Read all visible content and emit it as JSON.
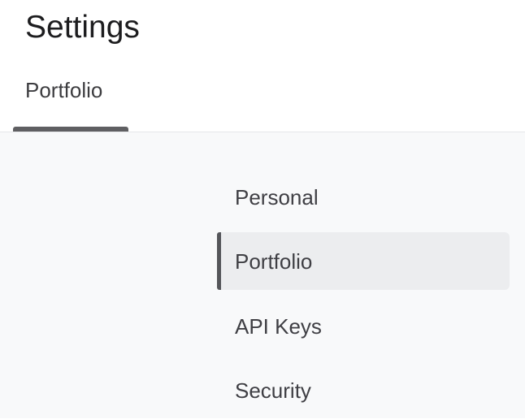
{
  "header": {
    "title": "Settings"
  },
  "tabs": [
    {
      "label": "Portfolio",
      "active": true
    }
  ],
  "menu": {
    "items": [
      {
        "label": "Personal",
        "active": false
      },
      {
        "label": "Portfolio",
        "active": true
      },
      {
        "label": "API Keys",
        "active": false
      },
      {
        "label": "Security",
        "active": false
      }
    ]
  },
  "colors": {
    "indicator": "#5f5f62",
    "content_bg": "#f8f9fa",
    "active_bg": "#ecedef"
  }
}
